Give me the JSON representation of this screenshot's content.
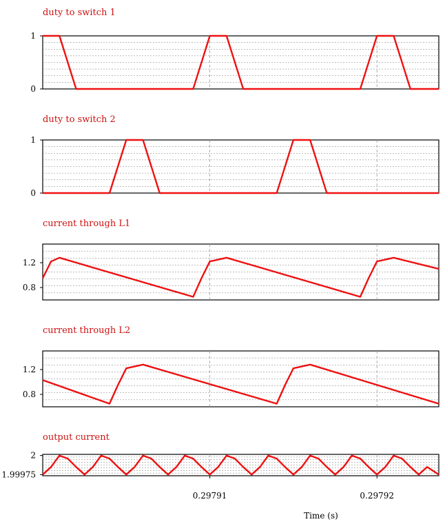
{
  "figure": {
    "xlabel": "Time (s)",
    "x_ticks": [
      {
        "value": 0.29791,
        "label": "0.29791"
      },
      {
        "value": 0.29792,
        "label": "0.29792"
      }
    ],
    "x_range": [
      0.2979,
      0.2979237
    ]
  },
  "colors": {
    "trace": "#ee1111",
    "title": "#cc1111",
    "frame": "#000000",
    "grid": "#777777"
  },
  "chart_data": [
    {
      "type": "line",
      "title": "duty to switch 1",
      "ylim": [
        0,
        1
      ],
      "yticks": [
        {
          "value": 1,
          "label": "1"
        },
        {
          "value": 0,
          "label": "0"
        }
      ],
      "grid": true,
      "series": [
        {
          "x": [
            0.2979,
            0.297901,
            0.297902,
            0.297909,
            0.29791,
            0.297911,
            0.297912,
            0.297919,
            0.29792,
            0.297921,
            0.297922,
            0.2979237
          ],
          "y": [
            1,
            1,
            0,
            0,
            1,
            1,
            0,
            0,
            1,
            1,
            0,
            0
          ]
        }
      ]
    },
    {
      "type": "line",
      "title": "duty to switch 2",
      "ylim": [
        0,
        1
      ],
      "yticks": [
        {
          "value": 1,
          "label": "1"
        },
        {
          "value": 0,
          "label": "0"
        }
      ],
      "grid": true,
      "series": [
        {
          "x": [
            0.2979,
            0.297904,
            0.297905,
            0.297906,
            0.297907,
            0.297914,
            0.297915,
            0.297916,
            0.297917,
            0.2979237
          ],
          "y": [
            0,
            0,
            1,
            1,
            0,
            0,
            1,
            1,
            0,
            0
          ]
        }
      ]
    },
    {
      "type": "line",
      "title": "current through L1",
      "ylim": [
        0.6,
        1.5
      ],
      "yticks": [
        {
          "value": 1.2,
          "label": "1.2"
        },
        {
          "value": 0.8,
          "label": "0.8"
        }
      ],
      "grid": true,
      "series": [
        {
          "x": [
            0.2979,
            0.2979005,
            0.297901,
            0.297909,
            0.2979095,
            0.29791,
            0.297911,
            0.297919,
            0.2979195,
            0.29792,
            0.297921,
            0.2979237
          ],
          "y": [
            0.95,
            1.22,
            1.28,
            0.65,
            0.95,
            1.22,
            1.28,
            0.65,
            0.95,
            1.22,
            1.28,
            1.1
          ]
        }
      ]
    },
    {
      "type": "line",
      "title": "current through L2",
      "ylim": [
        0.6,
        1.5
      ],
      "yticks": [
        {
          "value": 1.2,
          "label": "1.2"
        },
        {
          "value": 0.8,
          "label": "0.8"
        }
      ],
      "grid": true,
      "series": [
        {
          "x": [
            0.2979,
            0.297904,
            0.2979045,
            0.297905,
            0.297906,
            0.297914,
            0.2979145,
            0.297915,
            0.297916,
            0.2979237
          ],
          "y": [
            1.03,
            0.65,
            0.95,
            1.22,
            1.28,
            0.65,
            0.95,
            1.22,
            1.28,
            0.65
          ]
        }
      ]
    },
    {
      "type": "line",
      "title": "output current",
      "ylim": [
        1.999735,
        2.000015
      ],
      "yticks": [
        {
          "value": 2,
          "label": "2"
        },
        {
          "value": 1.99975,
          "label": "1.99975"
        }
      ],
      "grid": true,
      "series": [
        {
          "x": [
            0.2979,
            0.2979005,
            0.297901,
            0.2979015,
            0.297902,
            0.2979025,
            0.297903,
            0.2979035,
            0.297904,
            0.2979045,
            0.297905,
            0.2979055,
            0.297906,
            0.2979065,
            0.297907,
            0.2979075,
            0.297908,
            0.2979085,
            0.297909,
            0.2979095,
            0.29791,
            0.2979105,
            0.297911,
            0.2979115,
            0.297912,
            0.2979125,
            0.297913,
            0.2979135,
            0.297914,
            0.2979145,
            0.297915,
            0.2979155,
            0.297916,
            0.2979165,
            0.297917,
            0.2979175,
            0.297918,
            0.2979185,
            0.297919,
            0.2979195,
            0.29792,
            0.2979205,
            0.297921,
            0.2979215,
            0.297922,
            0.2979225,
            0.297923,
            0.2979237
          ],
          "y": [
            1.99975,
            1.99985,
            2.0,
            1.99996,
            1.99985,
            1.99975,
            1.99985,
            2.0,
            1.99996,
            1.99985,
            1.99975,
            1.99985,
            2.0,
            1.99996,
            1.99985,
            1.99975,
            1.99985,
            2.0,
            1.99996,
            1.99985,
            1.99975,
            1.99985,
            2.0,
            1.99996,
            1.99985,
            1.99975,
            1.99985,
            2.0,
            1.99996,
            1.99985,
            1.99975,
            1.99985,
            2.0,
            1.99996,
            1.99985,
            1.99975,
            1.99985,
            2.0,
            1.99996,
            1.99985,
            1.99975,
            1.99985,
            2.0,
            1.99996,
            1.99985,
            1.99975,
            1.99985,
            1.99975
          ]
        }
      ]
    }
  ]
}
